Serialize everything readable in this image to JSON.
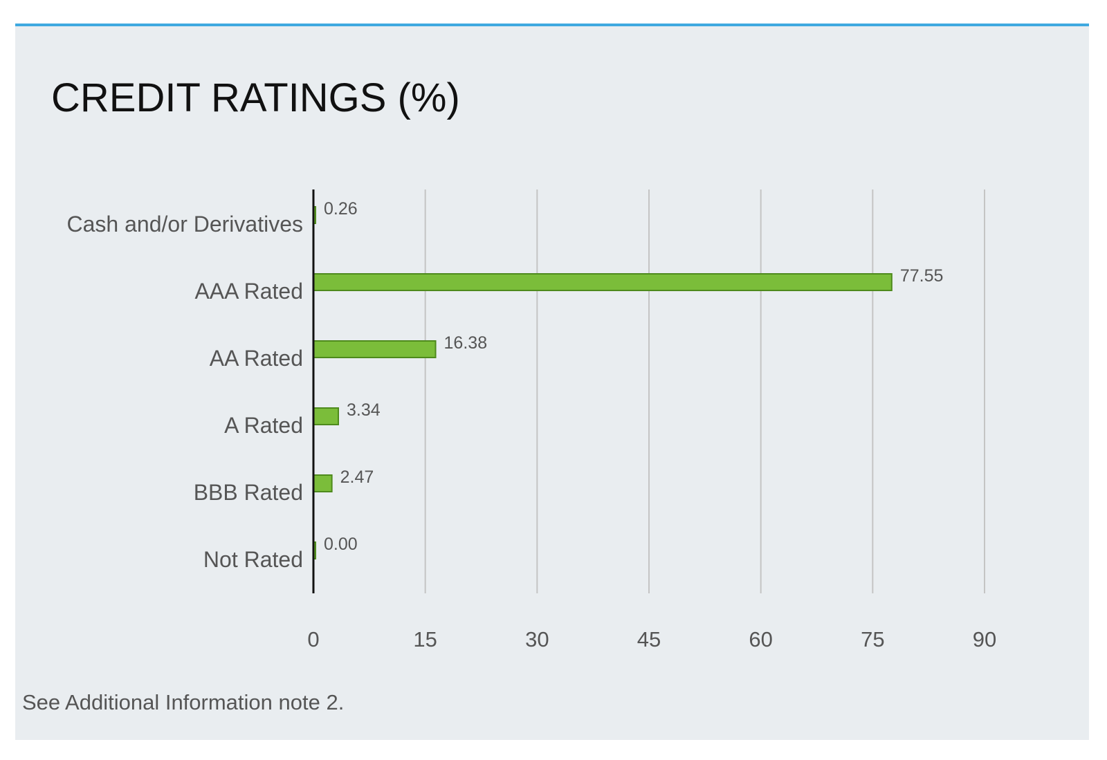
{
  "panel": {
    "title": "CREDIT RATINGS (%)",
    "footnote": "See Additional Information note 2."
  },
  "colors": {
    "accent_border": "#3fa9e0",
    "background": "#e9edf0",
    "bar_fill": "#7bbd3a",
    "bar_stroke": "#4e8a1c",
    "gridline": "#c4c4c4",
    "axis_line": "#111111",
    "axis_tick_accent": "#2f6db5"
  },
  "chart_data": {
    "type": "bar",
    "orientation": "horizontal",
    "title": "CREDIT RATINGS (%)",
    "categories": [
      "Cash and/or Derivatives",
      "AAA Rated",
      "AA Rated",
      "A Rated",
      "BBB Rated",
      "Not Rated"
    ],
    "values": [
      0.26,
      77.55,
      16.38,
      3.34,
      2.47,
      0.0
    ],
    "data_labels": [
      "0.26",
      "77.55",
      "16.38",
      "3.34",
      "2.47",
      "0.00"
    ],
    "xlim": [
      0,
      90
    ],
    "xticks": [
      "0",
      "15",
      "30",
      "45",
      "60",
      "75",
      "90"
    ],
    "grid": true,
    "legend": "none"
  }
}
